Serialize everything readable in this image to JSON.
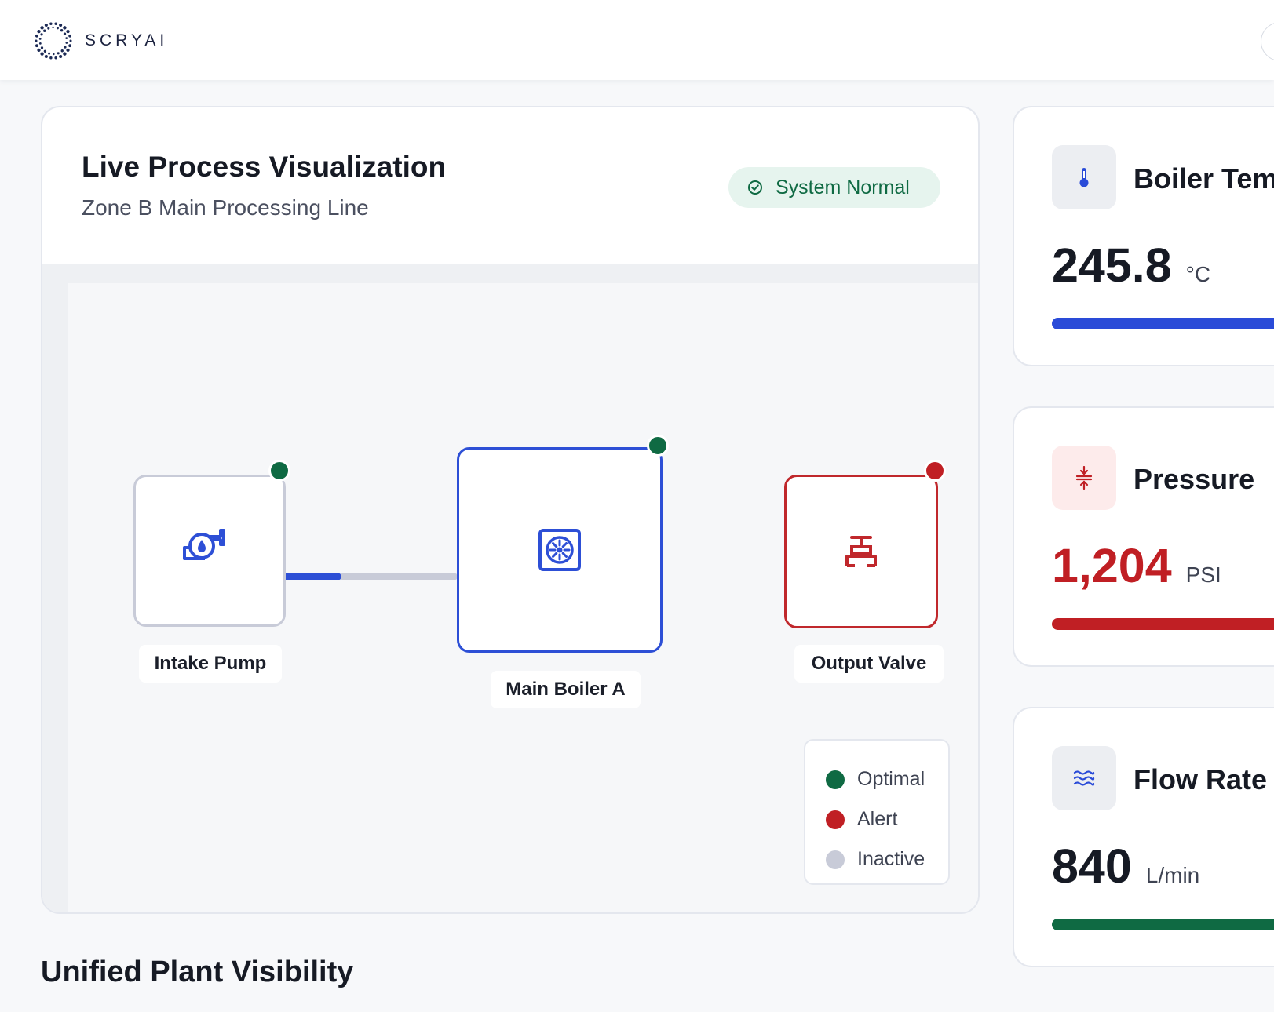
{
  "header": {
    "brand": "SCRYAI",
    "logo_icon": "scryai-dotted-ring-logo",
    "avatar_icon": "user-avatar-icon"
  },
  "process_card": {
    "title": "Live Process Visualization",
    "subtitle": "Zone B Main Processing Line",
    "status": {
      "label": "System Normal",
      "icon": "check-circle-icon",
      "color": "#0f6a43",
      "background": "#e6f4ee"
    },
    "nodes": [
      {
        "label": "Intake Pump",
        "icon": "pump-icon",
        "status": "optimal",
        "border_color": "#c8cbd8"
      },
      {
        "label": "Main Boiler A",
        "icon": "boiler-icon",
        "status": "optimal",
        "border_color": "#2d4fd6"
      },
      {
        "label": "Output Valve",
        "icon": "valve-icon",
        "status": "alert",
        "border_color": "#c0282c"
      }
    ],
    "legend": [
      {
        "label": "Optimal",
        "color": "#0f6a43"
      },
      {
        "label": "Alert",
        "color": "#c01f24"
      },
      {
        "label": "Inactive",
        "color": "#c8cbd8"
      }
    ]
  },
  "metrics": [
    {
      "title": "Boiler Temperature",
      "value": "245.8",
      "unit": "°C",
      "icon": "thermometer-icon",
      "accent": "#2a4bd8",
      "icon_bg": "#eceef2",
      "value_color": "#161a24"
    },
    {
      "title": "Pressure",
      "value": "1,204",
      "unit": "PSI",
      "icon": "compress-arrows-icon",
      "accent": "#c01f24",
      "icon_bg": "#fdebeb",
      "value_color": "#c01f24"
    },
    {
      "title": "Flow Rate",
      "value": "840",
      "unit": "L/min",
      "icon": "waves-icon",
      "accent": "#0f6a43",
      "icon_bg": "#eceef2",
      "value_color": "#161a24"
    }
  ],
  "section": {
    "title": "Unified Plant Visibility"
  },
  "colors": {
    "primary_blue": "#2d4fd6",
    "alert_red": "#c0282c",
    "optimal_green": "#0f6a43",
    "inactive_gray": "#c8cbd8"
  }
}
